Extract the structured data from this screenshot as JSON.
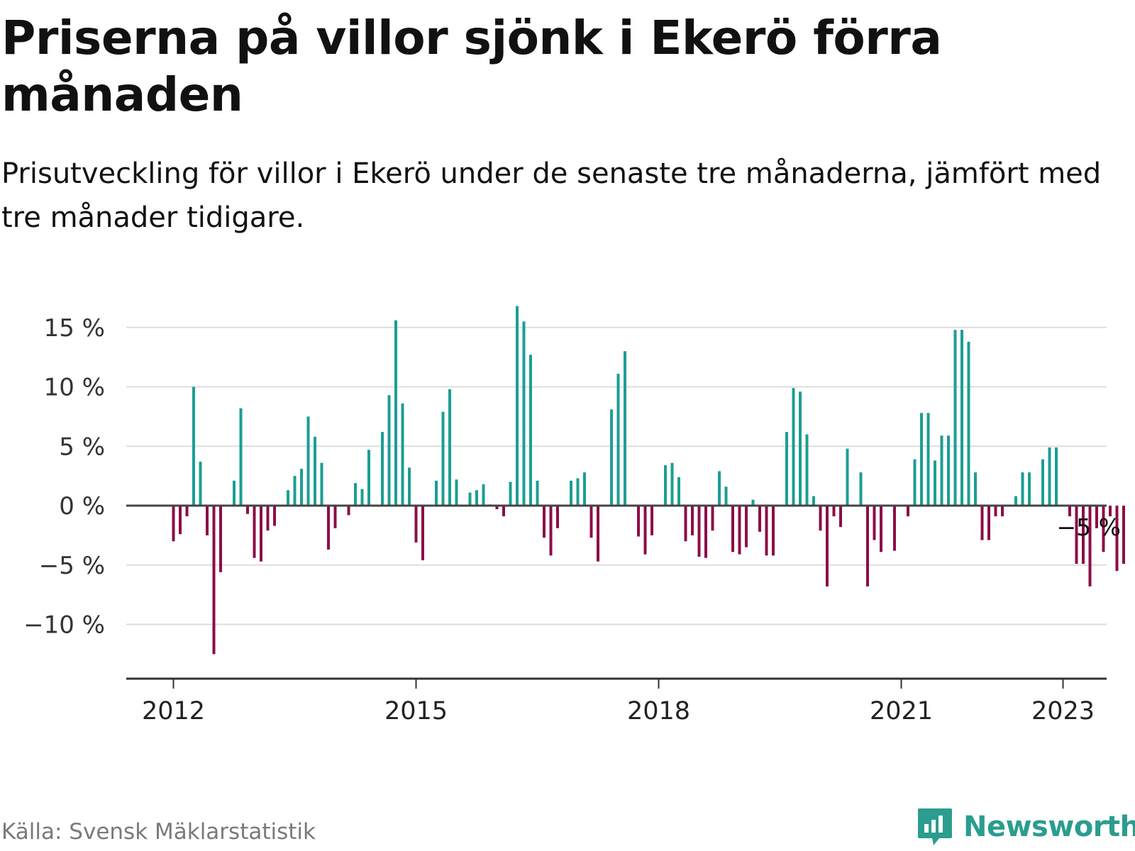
{
  "title": "Priserna på villor sjönk i Ekerö förra månaden",
  "subtitle": "Prisutveckling för villor i Ekerö under de senaste tre månaderna, jämfört med tre månader tidigare.",
  "source": "Källa: Svensk Mäklarstatistik",
  "brand": {
    "name": "Newsworthy",
    "icon": "newsworthy-logo-icon",
    "color": "#2a9d8f"
  },
  "colors": {
    "positive": "#1b9e93",
    "negative": "#8c0d47",
    "grid": "#dddddd",
    "axis": "#333333",
    "zero_line": "#444444"
  },
  "chart_data": {
    "type": "bar",
    "title": "Priserna på villor sjönk i Ekerö förra månaden",
    "subtitle": "Prisutveckling för villor i Ekerö under de senaste tre månaderna, jämfört med tre månader tidigare.",
    "xlabel": "",
    "ylabel": "",
    "ylim": [
      -13.5,
      17.5
    ],
    "yticks": [
      15,
      10,
      5,
      0,
      -5,
      -10
    ],
    "ytick_labels": [
      "15 %",
      "10 %",
      "5 %",
      "0 %",
      "−5 %",
      "−10 %"
    ],
    "xticks": [
      2012,
      2015,
      2018,
      2021,
      2023
    ],
    "xtick_labels": [
      "2012",
      "2015",
      "2018",
      "2021",
      "2023"
    ],
    "grid": true,
    "start": "2012-01",
    "annotation": {
      "date": "2023-01",
      "label": "−5 %"
    },
    "series": [
      {
        "values": [
          -3,
          -2.4,
          -0.9,
          10,
          3.7,
          -2.5,
          -12.5,
          -5.6,
          0,
          2.1,
          8.2,
          -0.7,
          -4.4,
          -4.7,
          -2.1,
          -1.7,
          0,
          1.3,
          2.5,
          3.1,
          7.5,
          5.8,
          3.6,
          -3.7,
          -1.9,
          0,
          -0.8,
          1.9,
          1.4,
          4.7,
          0,
          6.2,
          9.3,
          15.6,
          8.6,
          3.2,
          -3.1,
          -4.6,
          0,
          2.1,
          7.9,
          9.8,
          2.2,
          0,
          1.1,
          1.3,
          1.8,
          0.1,
          -0.3,
          -0.9,
          2,
          16.8,
          15.5,
          12.7,
          2.1,
          -2.7,
          -4.2,
          -1.9,
          0,
          2.1,
          2.3,
          2.8,
          -2.7,
          -4.7,
          0,
          8.1,
          11.1,
          13,
          0,
          -2.6,
          -4.1,
          -2.5,
          0,
          3.4,
          3.6,
          2.4,
          -3,
          -2.5,
          -4.3,
          -4.4,
          -2.1,
          2.9,
          1.6,
          -3.9,
          -4.1,
          -3.5,
          0.5,
          -2.2,
          -4.2,
          -4.2,
          0,
          6.2,
          9.9,
          9.6,
          6,
          0.8,
          -2.1,
          -6.8,
          -0.9,
          -1.8,
          4.8,
          0,
          2.8,
          -6.8,
          -2.9,
          -3.9,
          0,
          -3.8,
          0,
          -0.9,
          3.9,
          7.8,
          7.8,
          3.8,
          5.9,
          5.9,
          14.8,
          14.8,
          13.8,
          2.8,
          -2.9,
          -2.9,
          -0.9,
          -0.9,
          0,
          0.8,
          2.8,
          2.8,
          0,
          3.9,
          4.9,
          4.9,
          0,
          -0.9,
          -4.9,
          -4.9,
          -6.8,
          -1.9,
          -3.9,
          -0.9,
          -5.5,
          -4.9
        ]
      }
    ]
  }
}
